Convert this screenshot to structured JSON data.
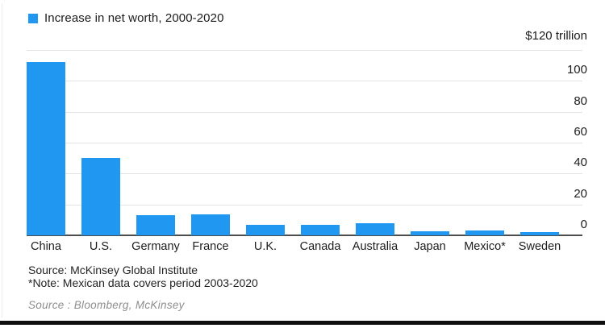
{
  "chart_data": {
    "type": "bar",
    "title": "Increase in net worth, 2000-2020",
    "legend": [
      {
        "label": "Increase in net worth, 2000-2020",
        "color": "#2097f0"
      }
    ],
    "legend_position": "top-left",
    "categories": [
      "China",
      "U.S.",
      "Germany",
      "France",
      "U.K.",
      "Canada",
      "Australia",
      "Japan",
      "Mexico*",
      "Sweden"
    ],
    "values": [
      112,
      50,
      13,
      13.5,
      7,
      7,
      8,
      2.5,
      3,
      2
    ],
    "y_axis_top_label": "$120 trillion",
    "y_ticks": [
      100,
      80,
      60,
      40,
      20,
      0
    ],
    "ylim": [
      0,
      120
    ],
    "grid": true,
    "bar_color": "#2097f0",
    "gridline_color": "#e3e3e3",
    "baseline_color": "#4d4d4d"
  },
  "footer": {
    "source_line1": "Source: McKinsey Global Institute",
    "note_line": "*Note: Mexican data covers period 2003-2020",
    "attribution": "Source : Bloomberg, McKinsey"
  }
}
